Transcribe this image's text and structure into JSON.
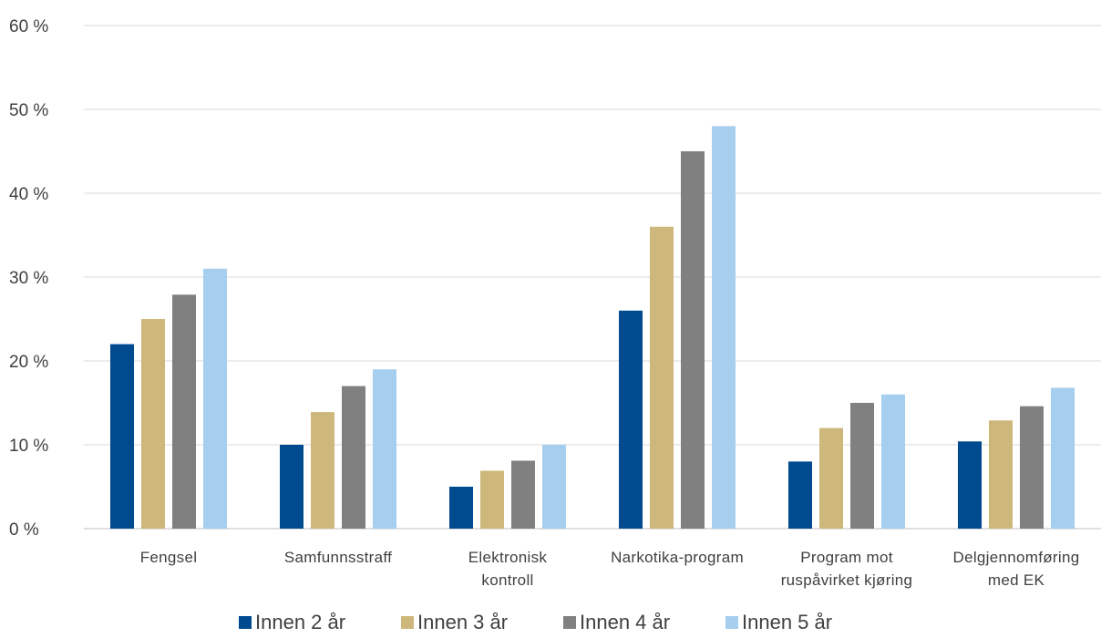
{
  "chart_data": {
    "type": "bar",
    "categories": [
      [
        "Fengsel"
      ],
      [
        "Samfunnsstraff"
      ],
      [
        "Elektronisk",
        "kontroll"
      ],
      [
        "Narkotika-program"
      ],
      [
        "Program mot",
        "ruspåvirket kjøring"
      ],
      [
        "Delgjennomføring",
        "med EK"
      ]
    ],
    "series": [
      {
        "name": "Innen 2 år",
        "color": "#004A8F",
        "values": [
          22,
          10,
          5,
          26,
          8,
          10.4
        ]
      },
      {
        "name": "Innen 3 år",
        "color": "#CEB77A",
        "values": [
          25,
          13.9,
          6.9,
          36,
          12,
          12.9
        ]
      },
      {
        "name": "Innen 4 år",
        "color": "#808080",
        "values": [
          27.9,
          17,
          8.1,
          45,
          15,
          14.6
        ]
      },
      {
        "name": "Innen 5 år",
        "color": "#A6CEEE",
        "values": [
          31,
          19,
          10,
          48,
          16,
          16.8
        ]
      }
    ],
    "yticks": [
      "0 %",
      "10 %",
      "20 %",
      "30 %",
      "40 %",
      "50 %",
      "60 %"
    ],
    "ylim": [
      0,
      60
    ],
    "grid": true,
    "legend": "bottom"
  }
}
